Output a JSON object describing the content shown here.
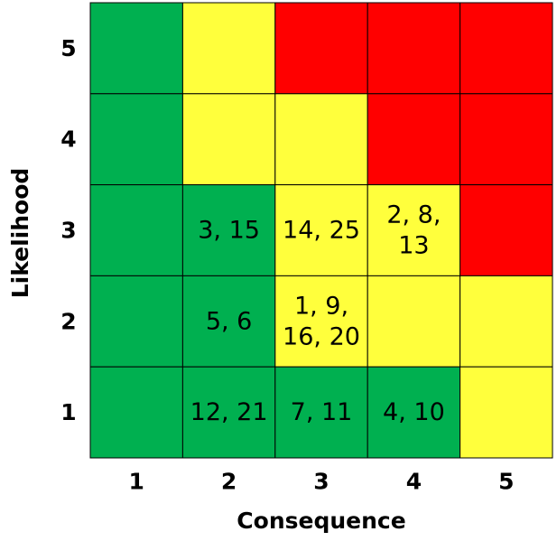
{
  "chart_data": {
    "type": "heatmap",
    "title": "",
    "xlabel": "Consequence",
    "ylabel": "Likelihood",
    "x_categories": [
      "1",
      "2",
      "3",
      "4",
      "5"
    ],
    "y_categories": [
      "1",
      "2",
      "3",
      "4",
      "5"
    ],
    "colors": {
      "green": "#00b050",
      "yellow": "#ffff3c",
      "red": "#ff0000"
    },
    "grid_line_color": "#000000",
    "cells": [
      {
        "likelihood": 5,
        "consequence": 1,
        "level": "green",
        "label": []
      },
      {
        "likelihood": 5,
        "consequence": 2,
        "level": "yellow",
        "label": []
      },
      {
        "likelihood": 5,
        "consequence": 3,
        "level": "red",
        "label": []
      },
      {
        "likelihood": 5,
        "consequence": 4,
        "level": "red",
        "label": []
      },
      {
        "likelihood": 5,
        "consequence": 5,
        "level": "red",
        "label": []
      },
      {
        "likelihood": 4,
        "consequence": 1,
        "level": "green",
        "label": []
      },
      {
        "likelihood": 4,
        "consequence": 2,
        "level": "yellow",
        "label": []
      },
      {
        "likelihood": 4,
        "consequence": 3,
        "level": "yellow",
        "label": []
      },
      {
        "likelihood": 4,
        "consequence": 4,
        "level": "red",
        "label": []
      },
      {
        "likelihood": 4,
        "consequence": 5,
        "level": "red",
        "label": []
      },
      {
        "likelihood": 3,
        "consequence": 1,
        "level": "green",
        "label": []
      },
      {
        "likelihood": 3,
        "consequence": 2,
        "level": "green",
        "label": [
          "3, 15"
        ]
      },
      {
        "likelihood": 3,
        "consequence": 3,
        "level": "yellow",
        "label": [
          "14, 25"
        ]
      },
      {
        "likelihood": 3,
        "consequence": 4,
        "level": "yellow",
        "label": [
          "2, 8,",
          "13"
        ]
      },
      {
        "likelihood": 3,
        "consequence": 5,
        "level": "red",
        "label": []
      },
      {
        "likelihood": 2,
        "consequence": 1,
        "level": "green",
        "label": []
      },
      {
        "likelihood": 2,
        "consequence": 2,
        "level": "green",
        "label": [
          "5, 6"
        ]
      },
      {
        "likelihood": 2,
        "consequence": 3,
        "level": "yellow",
        "label": [
          "1, 9,",
          "16, 20"
        ]
      },
      {
        "likelihood": 2,
        "consequence": 4,
        "level": "yellow",
        "label": []
      },
      {
        "likelihood": 2,
        "consequence": 5,
        "level": "yellow",
        "label": []
      },
      {
        "likelihood": 1,
        "consequence": 1,
        "level": "green",
        "label": []
      },
      {
        "likelihood": 1,
        "consequence": 2,
        "level": "green",
        "label": [
          "12, 21"
        ]
      },
      {
        "likelihood": 1,
        "consequence": 3,
        "level": "green",
        "label": [
          "7, 11"
        ]
      },
      {
        "likelihood": 1,
        "consequence": 4,
        "level": "green",
        "label": [
          "4, 10"
        ]
      },
      {
        "likelihood": 1,
        "consequence": 5,
        "level": "yellow",
        "label": []
      }
    ]
  }
}
